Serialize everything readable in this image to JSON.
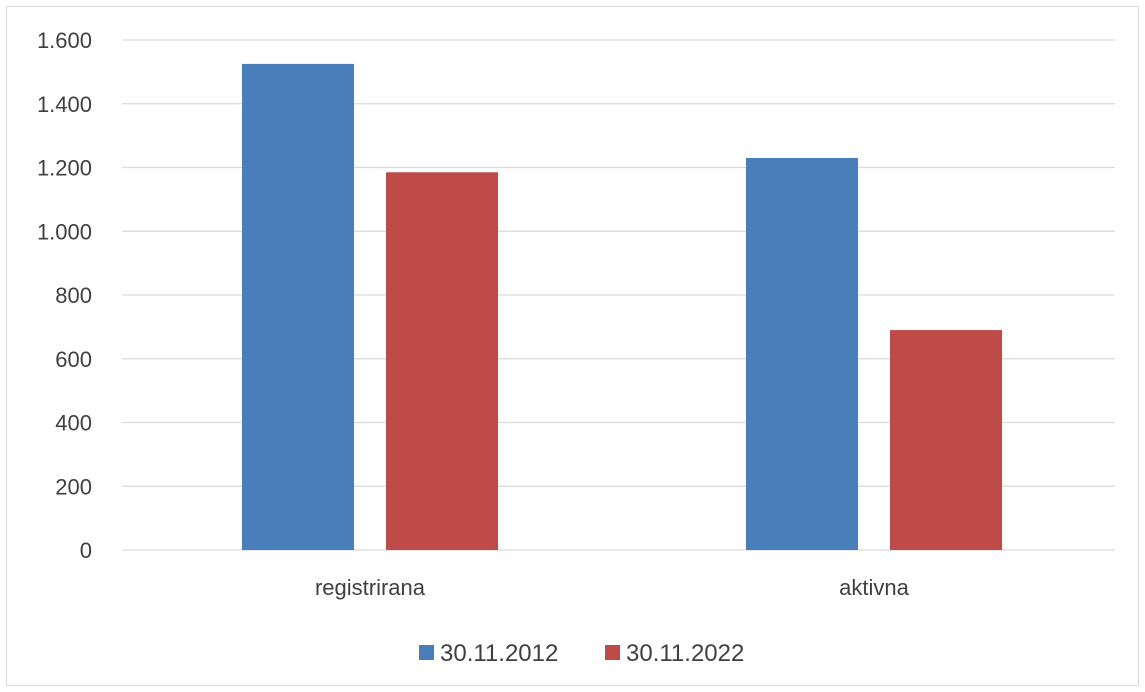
{
  "chart_data": {
    "type": "bar",
    "categories": [
      "registrirana",
      "aktivna"
    ],
    "series": [
      {
        "name": "30.11.2012",
        "values": [
          1525,
          1230
        ],
        "color": "#4a7ebb"
      },
      {
        "name": "30.11.2022",
        "values": [
          1185,
          690
        ],
        "color": "#be4b48"
      }
    ],
    "title": "",
    "xlabel": "",
    "ylabel": "",
    "ylim": [
      0,
      1600
    ],
    "yticks": [
      0,
      200,
      400,
      600,
      800,
      1000,
      1200,
      1400,
      1600
    ],
    "ytick_labels": [
      "0",
      "200",
      "400",
      "600",
      "800",
      "1.000",
      "1.200",
      "1.400",
      "1.600"
    ],
    "grid": true,
    "gridline_color": "#d9d9d9",
    "legend_position": "bottom"
  }
}
